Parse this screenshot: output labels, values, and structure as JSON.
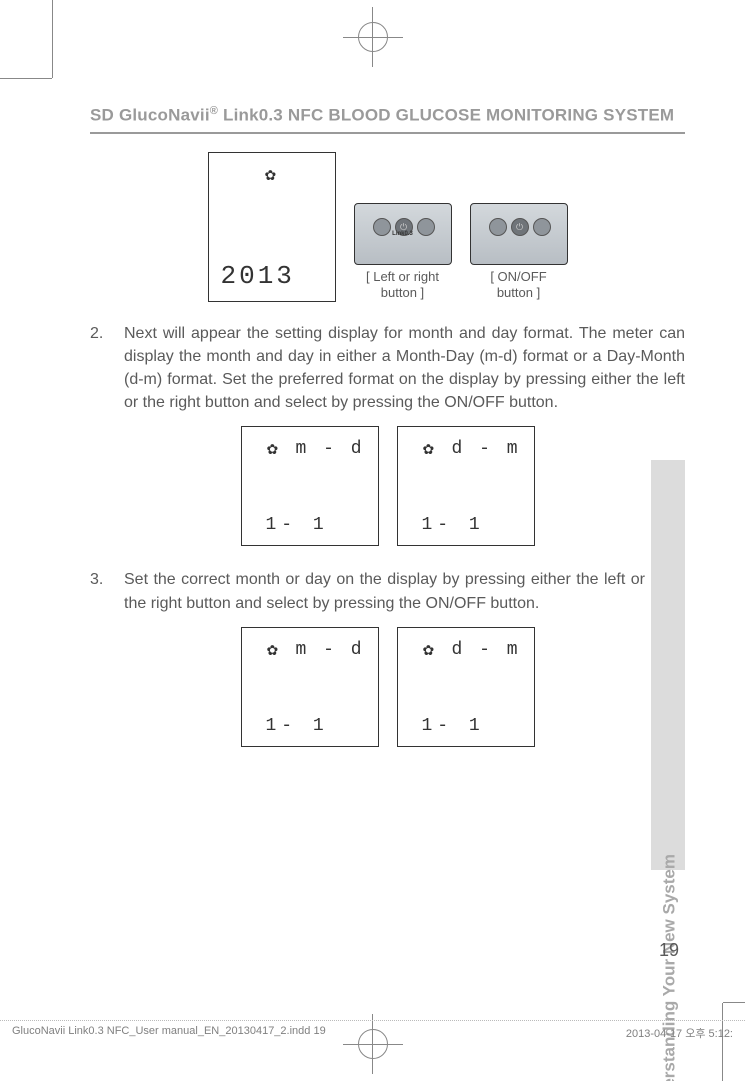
{
  "header": {
    "title_prefix": "SD GlucoNavii",
    "title_reg": "®",
    "title_suffix": " Link0.3 NFC BLOOD GLUCOSE MONITORING SYSTEM"
  },
  "fig1": {
    "year": "2013",
    "left_caption_l1": "[ Left or right",
    "left_caption_l2": "button ]",
    "right_caption_l1": "[ ON/OFF",
    "right_caption_l2": "button ]",
    "device_mid": "Link0.3"
  },
  "steps": {
    "s2": {
      "num": "2.",
      "text": "Next will appear the setting display for month and day format. The meter can display the month and day in either a Month-Day (m-d) format or a Day-Month (d-m) format. Set the preferred format on the display by pressing either the left or the right button and select by pressing the ON/OFF button."
    },
    "s3": {
      "num": "3.",
      "text": "Set the correct month or day on the display by pressing either the left or the right button and select by pressing the ON/OFF button."
    }
  },
  "fig2": {
    "left_fmt": "m - d",
    "right_fmt": "d - m",
    "date": "1- 1"
  },
  "fig3": {
    "left_fmt": "m - d",
    "right_fmt": "d - m",
    "date": "1- 1"
  },
  "side_tab": "Understanding Your New System",
  "page_number": "19",
  "footer": {
    "left": "GlucoNavii Link0.3 NFC_User manual_EN_20130417_2.indd   19",
    "right": "2013-04-17   오후 5:12:"
  },
  "colors": {
    "text": "#5a5a5a",
    "muted": "#9a9a9a",
    "tab_bg": "#dcdcdc",
    "tab_text": "#a9a9a9",
    "border": "#333333"
  }
}
